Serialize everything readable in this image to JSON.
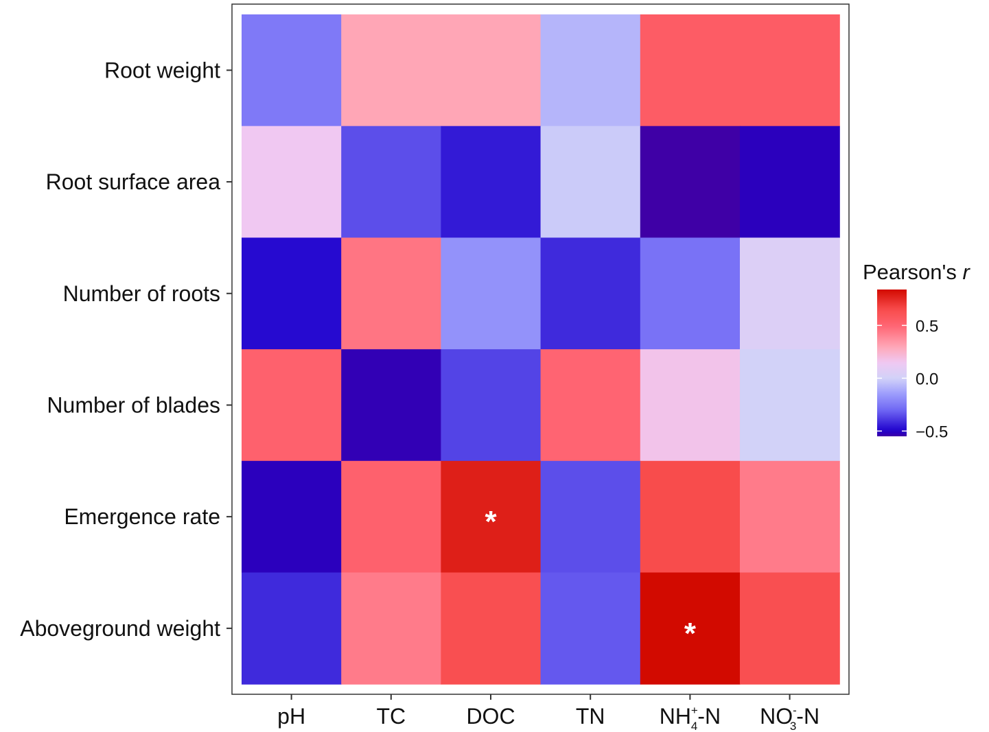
{
  "chart_data": {
    "type": "heatmap",
    "title": "",
    "xlabel": "",
    "ylabel": "",
    "x_categories": [
      "pH",
      "TC",
      "DOC",
      "TN",
      "NH4+-N",
      "NO3--N"
    ],
    "x_tick_labels": [
      {
        "base": "pH",
        "sup": "",
        "sub": "",
        "tail": ""
      },
      {
        "base": "TC",
        "sup": "",
        "sub": "",
        "tail": ""
      },
      {
        "base": "DOC",
        "sup": "",
        "sub": "",
        "tail": ""
      },
      {
        "base": "TN",
        "sup": "",
        "sub": "",
        "tail": ""
      },
      {
        "base": "NH",
        "sup": "+",
        "sub": "4",
        "tail": "-N"
      },
      {
        "base": "NO",
        "sup": "-",
        "sub": "3",
        "tail": "-N"
      }
    ],
    "y_categories": [
      "Root weight",
      "Root surface area",
      "Number of roots",
      "Number of blades",
      "Emergence rate",
      "Aboveground weight"
    ],
    "values": [
      [
        -0.25,
        0.3,
        0.3,
        -0.08,
        0.55,
        0.55
      ],
      [
        0.15,
        -0.35,
        -0.45,
        -0.02,
        -0.58,
        -0.52
      ],
      [
        -0.48,
        0.45,
        -0.18,
        -0.42,
        -0.27,
        0.05
      ],
      [
        0.52,
        -0.53,
        -0.37,
        0.5,
        0.17,
        0.0
      ],
      [
        -0.52,
        0.52,
        0.78,
        -0.35,
        0.65,
        0.43
      ],
      [
        -0.42,
        0.43,
        0.63,
        -0.33,
        0.84,
        0.63
      ]
    ],
    "significance": [
      [
        "",
        "",
        "",
        "",
        "",
        ""
      ],
      [
        "",
        "",
        "",
        "",
        "",
        ""
      ],
      [
        "",
        "",
        "",
        "",
        "",
        ""
      ],
      [
        "",
        "",
        "",
        "",
        "",
        ""
      ],
      [
        "",
        "",
        "*",
        "",
        "",
        ""
      ],
      [
        "",
        "",
        "",
        "",
        "*",
        ""
      ]
    ],
    "legend": {
      "title": "Pearson's ",
      "title_italic": "r",
      "placement": "right",
      "range": [
        -0.55,
        0.84
      ],
      "ticks": [
        0.5,
        0.0,
        -0.5
      ],
      "tick_labels": [
        "0.5",
        "0.0",
        "−0.5"
      ]
    },
    "color_stops": [
      {
        "v": -0.55,
        "c": "#3f00a6"
      },
      {
        "v": -0.5,
        "c": "#1e00cc"
      },
      {
        "v": -0.3,
        "c": "#7068f4"
      },
      {
        "v": -0.15,
        "c": "#9c9cfc"
      },
      {
        "v": 0.0,
        "c": "#d2d2f8"
      },
      {
        "v": 0.15,
        "c": "#f0c8f2"
      },
      {
        "v": 0.3,
        "c": "#ffa6b6"
      },
      {
        "v": 0.5,
        "c": "#ff6472"
      },
      {
        "v": 0.65,
        "c": "#f84c4c"
      },
      {
        "v": 0.84,
        "c": "#d20a00"
      }
    ]
  }
}
